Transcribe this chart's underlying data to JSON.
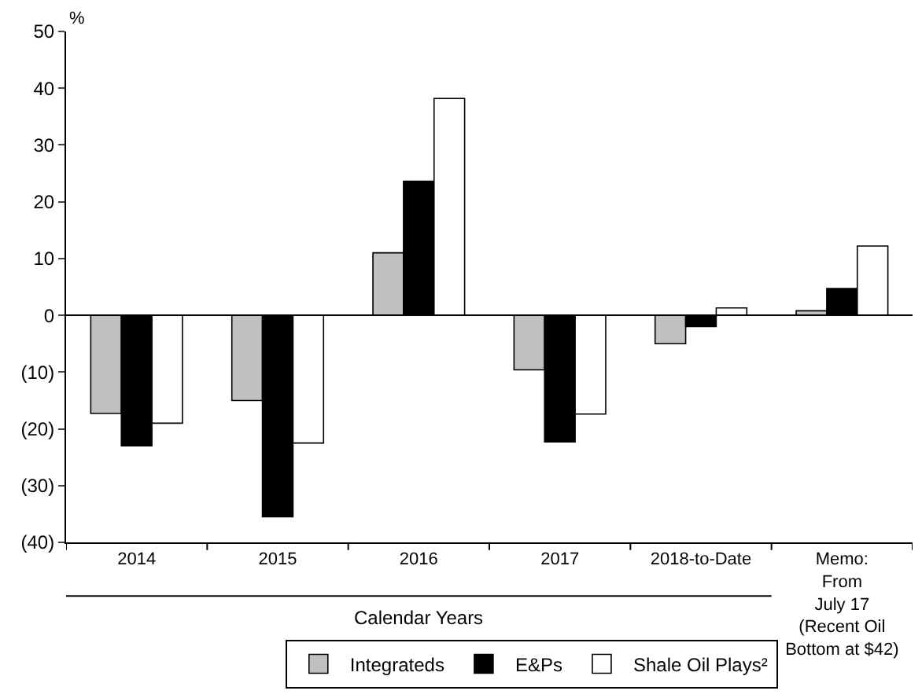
{
  "chart_data": {
    "type": "bar",
    "ylabel": "%",
    "categories": [
      "2014",
      "2015",
      "2016",
      "2017",
      "2018-to-Date",
      "Memo:\nFrom\nJuly 17\n(Recent Oil\nBottom at $42)"
    ],
    "series": [
      {
        "name": "Integrateds",
        "color": "#c0c0c0",
        "values": [
          -17.3,
          -15,
          11,
          -9.6,
          -5,
          0.8
        ]
      },
      {
        "name": "E&Ps",
        "color": "#000000",
        "values": [
          -23,
          -35.5,
          23.6,
          -22.3,
          -2,
          4.7
        ]
      },
      {
        "name": "Shale Oil Plays²",
        "color": "#ffffff",
        "values": [
          -19,
          -22.5,
          38.2,
          -17.4,
          1.3,
          12.2
        ]
      }
    ],
    "annotations": [
      "Calendar Years"
    ],
    "ylim": [
      -40,
      50
    ],
    "yticks": [
      {
        "value": -40,
        "label": "(40)"
      },
      {
        "value": -30,
        "label": "(30)"
      },
      {
        "value": -20,
        "label": "(20)"
      },
      {
        "value": -10,
        "label": "(10)"
      },
      0,
      10,
      20,
      30,
      40,
      50
    ],
    "ref_lines": [
      {
        "axis": "y",
        "value": 0,
        "color": "#000000"
      }
    ],
    "legend": "bottom"
  }
}
